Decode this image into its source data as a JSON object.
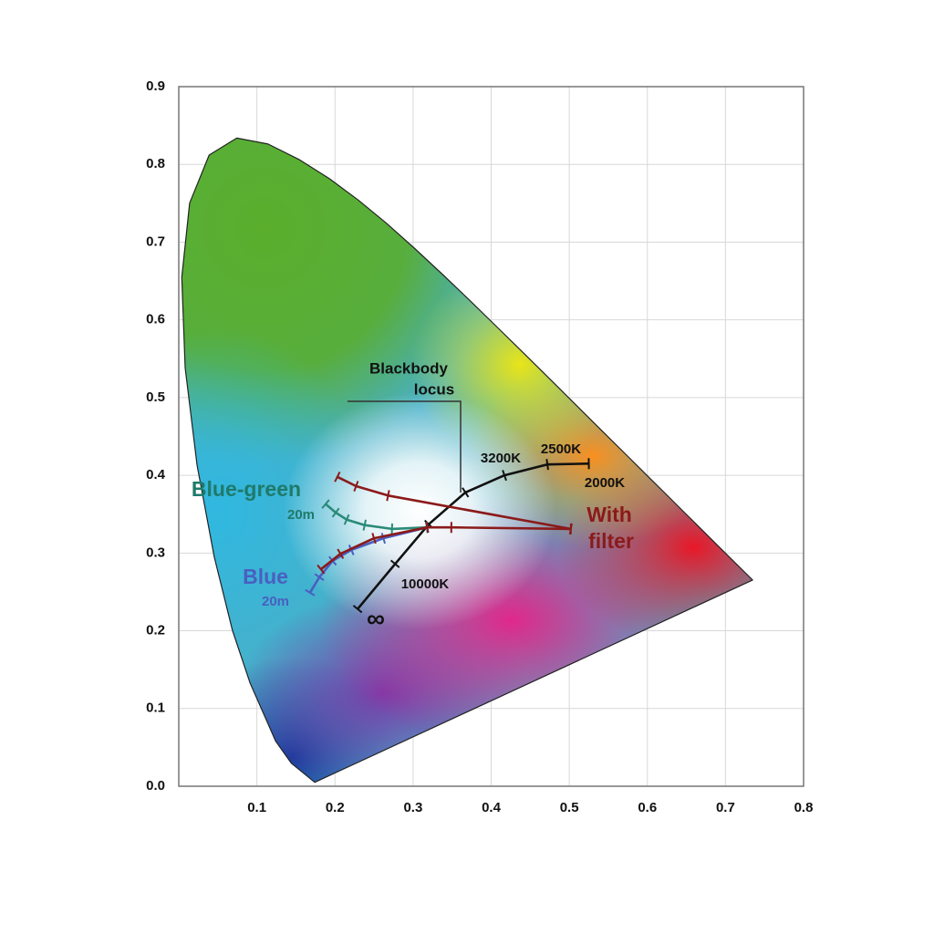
{
  "chart_data": {
    "type": "line",
    "xlim": [
      0,
      0.8
    ],
    "ylim": [
      0,
      0.9
    ],
    "xticks": [
      0.1,
      0.2,
      0.3,
      0.4,
      0.5,
      0.6,
      0.7,
      0.8
    ],
    "yticks": [
      {
        "value": 0,
        "label": "0.0"
      },
      0.1,
      0.2,
      0.3,
      0.4,
      0.5,
      0.6,
      0.7,
      0.8,
      0.9
    ],
    "grid": true,
    "series": [
      {
        "color": "#222222",
        "closed": true,
        "x": [
          0.1741,
          0.144,
          0.1241,
          0.0913,
          0.0687,
          0.0454,
          0.0235,
          0.0082,
          0.0039,
          0.0139,
          0.0389,
          0.0743,
          0.1142,
          0.1547,
          0.1929,
          0.2296,
          0.2658,
          0.3016,
          0.3373,
          0.3731,
          0.4087,
          0.4441,
          0.4788,
          0.5125,
          0.5448,
          0.5752,
          0.6029,
          0.627,
          0.6482,
          0.6658,
          0.6915,
          0.7347
        ],
        "values": [
          0.005,
          0.0297,
          0.0578,
          0.1327,
          0.2007,
          0.295,
          0.4127,
          0.5384,
          0.6548,
          0.7502,
          0.812,
          0.8338,
          0.8262,
          0.8059,
          0.7816,
          0.7543,
          0.7243,
          0.6923,
          0.6589,
          0.6245,
          0.5896,
          0.5547,
          0.5202,
          0.4866,
          0.4544,
          0.4242,
          0.3965,
          0.3725,
          0.3514,
          0.334,
          0.3083,
          0.2653
        ]
      },
      {
        "color": "#111111",
        "x": [
          0.229,
          0.277,
          0.32,
          0.367,
          0.417,
          0.472,
          0.525
        ],
        "values": [
          0.228,
          0.286,
          0.337,
          0.378,
          0.4,
          0.414,
          0.415
        ]
      },
      {
        "color": "#2a8a78",
        "x": [
          0.188,
          0.201,
          0.215,
          0.238,
          0.273,
          0.318
        ],
        "values": [
          0.363,
          0.352,
          0.343,
          0.336,
          0.331,
          0.333
        ]
      },
      {
        "color": "#4a5fc0",
        "x": [
          0.168,
          0.18,
          0.197,
          0.221,
          0.262,
          0.318
        ],
        "values": [
          0.249,
          0.269,
          0.29,
          0.304,
          0.319,
          0.333
        ]
      },
      {
        "color": "#8b1a1a",
        "x": [
          0.203,
          0.227,
          0.268,
          0.502
        ],
        "values": [
          0.398,
          0.386,
          0.374,
          0.331
        ]
      },
      {
        "color": "#8b1a1a",
        "x": [
          0.182,
          0.207,
          0.25,
          0.318,
          0.349,
          0.502
        ],
        "values": [
          0.279,
          0.299,
          0.319,
          0.333,
          0.333,
          0.331
        ]
      }
    ],
    "annotations": [
      {
        "text": "Blackbody",
        "color": "#111111"
      },
      {
        "text": "locus",
        "color": "#111111"
      },
      {
        "text": "3200K",
        "color": "#111111"
      },
      {
        "text": "2500K",
        "color": "#111111"
      },
      {
        "text": "2000K",
        "color": "#111111"
      },
      {
        "text": "10000K",
        "color": "#111111"
      },
      {
        "text": "∞",
        "color": "#111111"
      },
      {
        "text": "Blue-green",
        "color": "#1f7a6a"
      },
      {
        "text": "20m",
        "color": "#1f7a6a"
      },
      {
        "text": "Blue",
        "color": "#4a5fc0"
      },
      {
        "text": "20m",
        "color": "#4a5fc0"
      },
      {
        "text": "With",
        "color": "#8b1a1a"
      },
      {
        "text": "filter",
        "color": "#8b1a1a"
      }
    ]
  }
}
